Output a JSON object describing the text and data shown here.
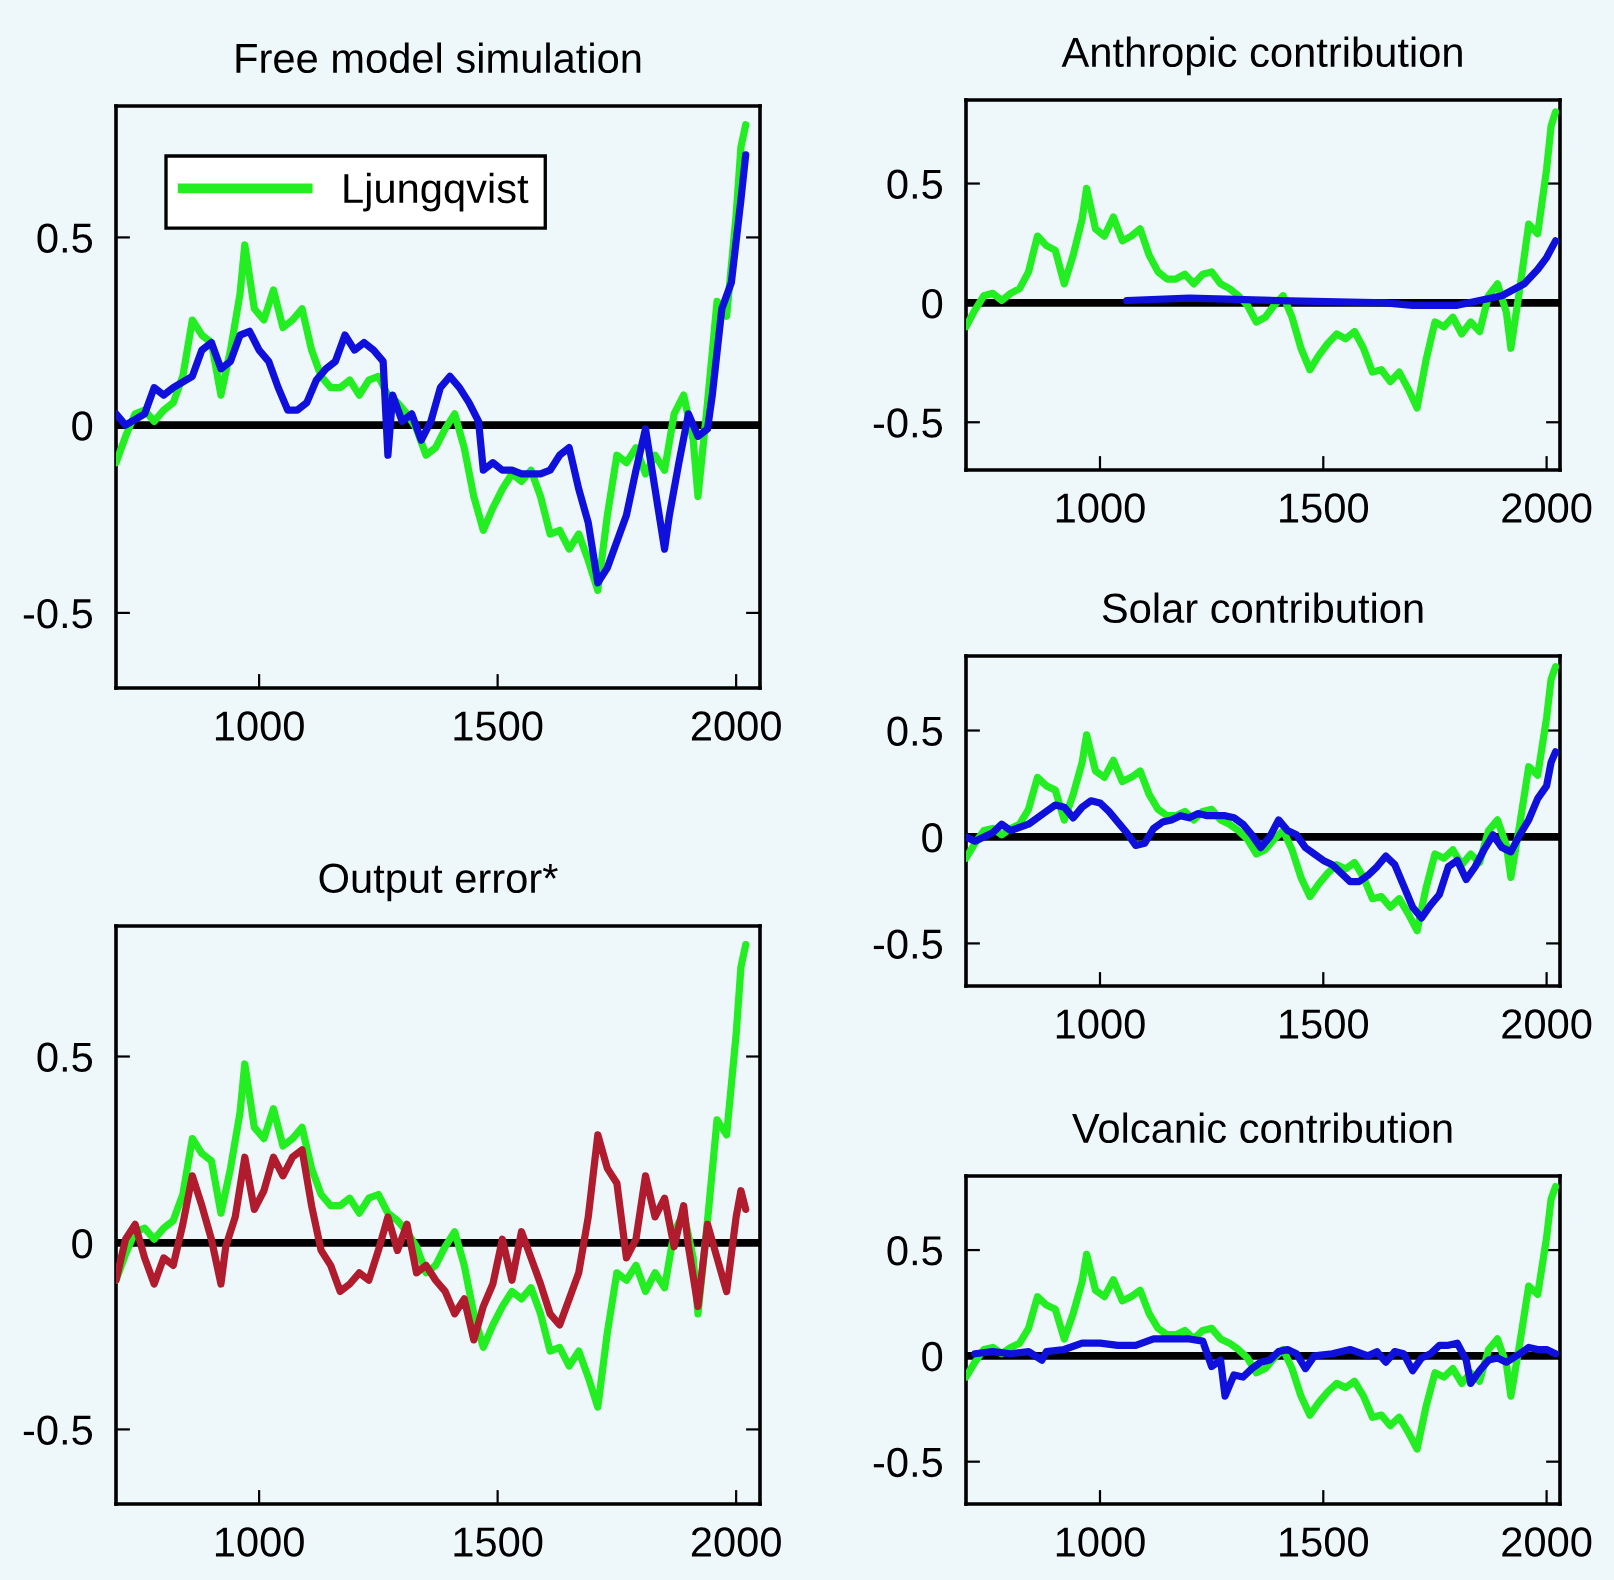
{
  "chart_data": [
    {
      "type": "line",
      "title": "Free model simulation",
      "xlim": [
        700,
        2050
      ],
      "ylim": [
        -0.7,
        0.85
      ],
      "xticks": [
        1000,
        1500,
        2000
      ],
      "yticks": [
        -0.5,
        0,
        0.5
      ],
      "grid": false,
      "legend": "top left",
      "ref_lines": [
        {
          "axis": "y",
          "value": 0,
          "color": "#000000"
        }
      ],
      "series": [
        {
          "name": "Ljungqvist",
          "color": "#22ee22",
          "x": [
            700,
            720,
            740,
            760,
            780,
            800,
            820,
            840,
            860,
            880,
            900,
            920,
            940,
            960,
            970,
            990,
            1010,
            1030,
            1050,
            1070,
            1090,
            1110,
            1130,
            1150,
            1170,
            1190,
            1210,
            1230,
            1250,
            1270,
            1290,
            1310,
            1330,
            1350,
            1370,
            1390,
            1410,
            1430,
            1450,
            1470,
            1490,
            1510,
            1530,
            1550,
            1570,
            1590,
            1610,
            1630,
            1650,
            1670,
            1690,
            1710,
            1730,
            1750,
            1770,
            1790,
            1810,
            1830,
            1850,
            1870,
            1890,
            1910,
            1920,
            1940,
            1960,
            1980,
            2000,
            2010,
            2020
          ],
          "values": [
            -0.1,
            -0.03,
            0.03,
            0.04,
            0.01,
            0.04,
            0.06,
            0.13,
            0.28,
            0.24,
            0.22,
            0.08,
            0.2,
            0.35,
            0.48,
            0.31,
            0.28,
            0.36,
            0.26,
            0.28,
            0.31,
            0.2,
            0.13,
            0.1,
            0.1,
            0.12,
            0.08,
            0.12,
            0.13,
            0.08,
            0.06,
            0.03,
            -0.01,
            -0.08,
            -0.06,
            -0.01,
            0.03,
            -0.06,
            -0.19,
            -0.28,
            -0.22,
            -0.17,
            -0.13,
            -0.15,
            -0.12,
            -0.19,
            -0.29,
            -0.28,
            -0.33,
            -0.29,
            -0.36,
            -0.44,
            -0.24,
            -0.08,
            -0.1,
            -0.06,
            -0.13,
            -0.08,
            -0.12,
            0.03,
            0.08,
            -0.04,
            -0.19,
            0.06,
            0.33,
            0.29,
            0.56,
            0.74,
            0.8
          ]
        },
        {
          "color": "#1010dd",
          "x": [
            700,
            720,
            760,
            780,
            800,
            820,
            860,
            880,
            900,
            920,
            940,
            960,
            980,
            1000,
            1020,
            1040,
            1060,
            1080,
            1100,
            1120,
            1140,
            1160,
            1180,
            1200,
            1220,
            1240,
            1260,
            1270,
            1280,
            1300,
            1320,
            1340,
            1360,
            1380,
            1400,
            1420,
            1440,
            1460,
            1470,
            1490,
            1510,
            1530,
            1550,
            1570,
            1590,
            1610,
            1630,
            1650,
            1670,
            1690,
            1710,
            1730,
            1750,
            1770,
            1790,
            1810,
            1830,
            1850,
            1860,
            1880,
            1900,
            1920,
            1940,
            1950,
            1970,
            1990,
            2010,
            2020
          ],
          "values": [
            0.03,
            0,
            0.03,
            0.1,
            0.08,
            0.1,
            0.13,
            0.2,
            0.22,
            0.15,
            0.17,
            0.24,
            0.25,
            0.2,
            0.17,
            0.1,
            0.04,
            0.04,
            0.06,
            0.12,
            0.15,
            0.17,
            0.24,
            0.2,
            0.22,
            0.2,
            0.17,
            -0.08,
            0.08,
            0.01,
            0.03,
            -0.04,
            0.01,
            0.1,
            0.13,
            0.1,
            0.06,
            0.01,
            -0.12,
            -0.1,
            -0.12,
            -0.12,
            -0.13,
            -0.13,
            -0.13,
            -0.12,
            -0.08,
            -0.06,
            -0.17,
            -0.26,
            -0.42,
            -0.38,
            -0.31,
            -0.24,
            -0.12,
            -0.01,
            -0.17,
            -0.33,
            -0.24,
            -0.1,
            0.03,
            -0.03,
            -0.01,
            0.08,
            0.31,
            0.38,
            0.6,
            0.72
          ]
        }
      ]
    },
    {
      "type": "line",
      "title": "Output error*",
      "xlim": [
        700,
        2050
      ],
      "ylim": [
        -0.7,
        0.85
      ],
      "xticks": [
        1000,
        1500,
        2000
      ],
      "yticks": [
        -0.5,
        0,
        0.5
      ],
      "grid": false,
      "ref_lines": [
        {
          "axis": "y",
          "value": 0,
          "color": "#000000"
        }
      ],
      "series": [
        {
          "color": "#22ee22",
          "x": [
            700,
            720,
            740,
            760,
            780,
            800,
            820,
            840,
            860,
            880,
            900,
            920,
            940,
            960,
            970,
            990,
            1010,
            1030,
            1050,
            1070,
            1090,
            1110,
            1130,
            1150,
            1170,
            1190,
            1210,
            1230,
            1250,
            1270,
            1290,
            1310,
            1330,
            1350,
            1370,
            1390,
            1410,
            1430,
            1450,
            1470,
            1490,
            1510,
            1530,
            1550,
            1570,
            1590,
            1610,
            1630,
            1650,
            1670,
            1690,
            1710,
            1730,
            1750,
            1770,
            1790,
            1810,
            1830,
            1850,
            1870,
            1890,
            1910,
            1920,
            1940,
            1960,
            1980,
            2000,
            2010,
            2020
          ],
          "values": [
            -0.1,
            -0.03,
            0.03,
            0.04,
            0.01,
            0.04,
            0.06,
            0.13,
            0.28,
            0.24,
            0.22,
            0.08,
            0.2,
            0.35,
            0.48,
            0.31,
            0.28,
            0.36,
            0.26,
            0.28,
            0.31,
            0.2,
            0.13,
            0.1,
            0.1,
            0.12,
            0.08,
            0.12,
            0.13,
            0.08,
            0.06,
            0.03,
            -0.01,
            -0.08,
            -0.06,
            -0.01,
            0.03,
            -0.06,
            -0.19,
            -0.28,
            -0.22,
            -0.17,
            -0.13,
            -0.15,
            -0.12,
            -0.19,
            -0.29,
            -0.28,
            -0.33,
            -0.29,
            -0.36,
            -0.44,
            -0.24,
            -0.08,
            -0.1,
            -0.06,
            -0.13,
            -0.08,
            -0.12,
            0.03,
            0.08,
            -0.04,
            -0.19,
            0.06,
            0.33,
            0.29,
            0.56,
            0.74,
            0.8
          ]
        },
        {
          "color": "#b01c2e",
          "x": [
            700,
            720,
            740,
            760,
            780,
            800,
            820,
            840,
            860,
            880,
            900,
            920,
            930,
            950,
            970,
            990,
            1010,
            1030,
            1050,
            1070,
            1090,
            1110,
            1130,
            1150,
            1170,
            1190,
            1210,
            1230,
            1250,
            1270,
            1290,
            1310,
            1330,
            1350,
            1370,
            1390,
            1410,
            1430,
            1450,
            1470,
            1490,
            1510,
            1530,
            1550,
            1570,
            1590,
            1610,
            1630,
            1650,
            1670,
            1690,
            1710,
            1730,
            1750,
            1770,
            1790,
            1810,
            1830,
            1850,
            1870,
            1890,
            1900,
            1920,
            1940,
            1960,
            1980,
            2000,
            2010,
            2020
          ],
          "values": [
            -0.1,
            0.01,
            0.05,
            -0.04,
            -0.11,
            -0.04,
            -0.06,
            0.05,
            0.18,
            0.1,
            0.01,
            -0.11,
            -0.01,
            0.07,
            0.23,
            0.09,
            0.14,
            0.23,
            0.18,
            0.23,
            0.25,
            0.1,
            -0.02,
            -0.06,
            -0.13,
            -0.11,
            -0.08,
            -0.1,
            -0.02,
            0.07,
            -0.02,
            0.05,
            -0.08,
            -0.06,
            -0.1,
            -0.13,
            -0.19,
            -0.15,
            -0.26,
            -0.17,
            -0.11,
            0.01,
            -0.1,
            0.03,
            -0.04,
            -0.11,
            -0.19,
            -0.22,
            -0.15,
            -0.08,
            0.07,
            0.29,
            0.2,
            0.16,
            -0.04,
            0.01,
            0.18,
            0.07,
            0.12,
            -0.01,
            0.1,
            -0.01,
            -0.17,
            0.05,
            -0.04,
            -0.13,
            0.07,
            0.14,
            0.09
          ]
        }
      ]
    },
    {
      "type": "line",
      "title": "Anthropic contribution",
      "xlim": [
        700,
        2030
      ],
      "ylim": [
        -0.7,
        0.85
      ],
      "xticks": [
        1000,
        1500,
        2000
      ],
      "yticks": [
        -0.5,
        0,
        0.5
      ],
      "grid": false,
      "ref_lines": [
        {
          "axis": "y",
          "value": 0,
          "color": "#000000"
        }
      ],
      "series": [
        {
          "color": "#22ee22",
          "x": [
            700,
            720,
            740,
            760,
            780,
            800,
            820,
            840,
            860,
            880,
            900,
            920,
            940,
            960,
            970,
            990,
            1010,
            1030,
            1050,
            1070,
            1090,
            1110,
            1130,
            1150,
            1170,
            1190,
            1210,
            1230,
            1250,
            1270,
            1290,
            1310,
            1330,
            1350,
            1370,
            1390,
            1410,
            1430,
            1450,
            1470,
            1490,
            1510,
            1530,
            1550,
            1570,
            1590,
            1610,
            1630,
            1650,
            1670,
            1690,
            1710,
            1730,
            1750,
            1770,
            1790,
            1810,
            1830,
            1850,
            1870,
            1890,
            1910,
            1920,
            1940,
            1960,
            1980,
            2000,
            2010,
            2020
          ],
          "values": [
            -0.1,
            -0.03,
            0.03,
            0.04,
            0.01,
            0.04,
            0.06,
            0.13,
            0.28,
            0.24,
            0.22,
            0.08,
            0.2,
            0.35,
            0.48,
            0.31,
            0.28,
            0.36,
            0.26,
            0.28,
            0.31,
            0.2,
            0.13,
            0.1,
            0.1,
            0.12,
            0.08,
            0.12,
            0.13,
            0.08,
            0.06,
            0.03,
            -0.01,
            -0.08,
            -0.06,
            -0.01,
            0.03,
            -0.06,
            -0.19,
            -0.28,
            -0.22,
            -0.17,
            -0.13,
            -0.15,
            -0.12,
            -0.19,
            -0.29,
            -0.28,
            -0.33,
            -0.29,
            -0.36,
            -0.44,
            -0.24,
            -0.08,
            -0.1,
            -0.06,
            -0.13,
            -0.08,
            -0.12,
            0.03,
            0.08,
            -0.04,
            -0.19,
            0.06,
            0.33,
            0.29,
            0.56,
            0.74,
            0.8
          ]
        },
        {
          "color": "#1010dd",
          "x": [
            1060,
            1200,
            1400,
            1640,
            1700,
            1800,
            1850,
            1900,
            1950,
            1980,
            2000,
            2020
          ],
          "values": [
            0.01,
            0.02,
            0.01,
            0,
            -0.01,
            -0.01,
            0.01,
            0.03,
            0.08,
            0.14,
            0.19,
            0.26
          ]
        }
      ]
    },
    {
      "type": "line",
      "title": "Solar contribution",
      "xlim": [
        700,
        2030
      ],
      "ylim": [
        -0.7,
        0.85
      ],
      "xticks": [
        1000,
        1500,
        2000
      ],
      "yticks": [
        -0.5,
        0,
        0.5
      ],
      "grid": false,
      "ref_lines": [
        {
          "axis": "y",
          "value": 0,
          "color": "#000000"
        }
      ],
      "series": [
        {
          "color": "#22ee22",
          "x": [
            700,
            720,
            740,
            760,
            780,
            800,
            820,
            840,
            860,
            880,
            900,
            920,
            940,
            960,
            970,
            990,
            1010,
            1030,
            1050,
            1070,
            1090,
            1110,
            1130,
            1150,
            1170,
            1190,
            1210,
            1230,
            1250,
            1270,
            1290,
            1310,
            1330,
            1350,
            1370,
            1390,
            1410,
            1430,
            1450,
            1470,
            1490,
            1510,
            1530,
            1550,
            1570,
            1590,
            1610,
            1630,
            1650,
            1670,
            1690,
            1710,
            1730,
            1750,
            1770,
            1790,
            1810,
            1830,
            1850,
            1870,
            1890,
            1910,
            1920,
            1940,
            1960,
            1980,
            2000,
            2010,
            2020
          ],
          "values": [
            -0.1,
            -0.03,
            0.03,
            0.04,
            0.01,
            0.04,
            0.06,
            0.13,
            0.28,
            0.24,
            0.22,
            0.08,
            0.2,
            0.35,
            0.48,
            0.31,
            0.28,
            0.36,
            0.26,
            0.28,
            0.31,
            0.2,
            0.13,
            0.1,
            0.1,
            0.12,
            0.08,
            0.12,
            0.13,
            0.08,
            0.06,
            0.03,
            -0.01,
            -0.08,
            -0.06,
            -0.01,
            0.03,
            -0.06,
            -0.19,
            -0.28,
            -0.22,
            -0.17,
            -0.13,
            -0.15,
            -0.12,
            -0.19,
            -0.29,
            -0.28,
            -0.33,
            -0.29,
            -0.36,
            -0.44,
            -0.24,
            -0.08,
            -0.1,
            -0.06,
            -0.13,
            -0.08,
            -0.12,
            0.03,
            0.08,
            -0.04,
            -0.19,
            0.06,
            0.33,
            0.29,
            0.56,
            0.74,
            0.8
          ]
        },
        {
          "color": "#1010dd",
          "x": [
            700,
            720,
            760,
            780,
            800,
            840,
            880,
            900,
            920,
            940,
            960,
            980,
            1000,
            1020,
            1040,
            1060,
            1080,
            1100,
            1120,
            1140,
            1160,
            1180,
            1200,
            1220,
            1240,
            1260,
            1280,
            1300,
            1320,
            1340,
            1360,
            1380,
            1400,
            1420,
            1440,
            1460,
            1480,
            1500,
            1520,
            1540,
            1560,
            1580,
            1600,
            1620,
            1640,
            1660,
            1680,
            1700,
            1720,
            1740,
            1760,
            1780,
            1800,
            1820,
            1840,
            1860,
            1880,
            1900,
            1920,
            1940,
            1960,
            1980,
            2000,
            2010,
            2020
          ],
          "values": [
            0,
            -0.02,
            0.02,
            0.06,
            0.03,
            0.06,
            0.12,
            0.15,
            0.14,
            0.09,
            0.14,
            0.17,
            0.16,
            0.12,
            0.07,
            0.02,
            -0.04,
            -0.03,
            0.04,
            0.07,
            0.08,
            0.1,
            0.09,
            0.11,
            0.1,
            0.1,
            0.1,
            0.09,
            0.06,
            0.01,
            -0.05,
            0,
            0.08,
            0.03,
            0.01,
            -0.05,
            -0.08,
            -0.11,
            -0.13,
            -0.17,
            -0.21,
            -0.21,
            -0.18,
            -0.14,
            -0.09,
            -0.13,
            -0.23,
            -0.33,
            -0.38,
            -0.32,
            -0.27,
            -0.14,
            -0.11,
            -0.2,
            -0.14,
            -0.06,
            0.01,
            -0.05,
            -0.07,
            0.01,
            0.08,
            0.18,
            0.24,
            0.35,
            0.4
          ]
        }
      ]
    },
    {
      "type": "line",
      "title": "Volcanic contribution",
      "xlim": [
        700,
        2030
      ],
      "ylim": [
        -0.7,
        0.85
      ],
      "xticks": [
        1000,
        1500,
        2000
      ],
      "yticks": [
        -0.5,
        0,
        0.5
      ],
      "grid": false,
      "ref_lines": [
        {
          "axis": "y",
          "value": 0,
          "color": "#000000"
        }
      ],
      "series": [
        {
          "color": "#22ee22",
          "x": [
            700,
            720,
            740,
            760,
            780,
            800,
            820,
            840,
            860,
            880,
            900,
            920,
            940,
            960,
            970,
            990,
            1010,
            1030,
            1050,
            1070,
            1090,
            1110,
            1130,
            1150,
            1170,
            1190,
            1210,
            1230,
            1250,
            1270,
            1290,
            1310,
            1330,
            1350,
            1370,
            1390,
            1410,
            1430,
            1450,
            1470,
            1490,
            1510,
            1530,
            1550,
            1570,
            1590,
            1610,
            1630,
            1650,
            1670,
            1690,
            1710,
            1730,
            1750,
            1770,
            1790,
            1810,
            1830,
            1850,
            1870,
            1890,
            1910,
            1920,
            1940,
            1960,
            1980,
            2000,
            2010,
            2020
          ],
          "values": [
            -0.1,
            -0.03,
            0.03,
            0.04,
            0.01,
            0.04,
            0.06,
            0.13,
            0.28,
            0.24,
            0.22,
            0.08,
            0.2,
            0.35,
            0.48,
            0.31,
            0.28,
            0.36,
            0.26,
            0.28,
            0.31,
            0.2,
            0.13,
            0.1,
            0.1,
            0.12,
            0.08,
            0.12,
            0.13,
            0.08,
            0.06,
            0.03,
            -0.01,
            -0.08,
            -0.06,
            -0.01,
            0.03,
            -0.06,
            -0.19,
            -0.28,
            -0.22,
            -0.17,
            -0.13,
            -0.15,
            -0.12,
            -0.19,
            -0.29,
            -0.28,
            -0.33,
            -0.29,
            -0.36,
            -0.44,
            -0.24,
            -0.08,
            -0.1,
            -0.06,
            -0.13,
            -0.08,
            -0.12,
            0.03,
            0.08,
            -0.04,
            -0.19,
            0.06,
            0.33,
            0.29,
            0.56,
            0.74,
            0.8
          ]
        },
        {
          "color": "#1010dd",
          "x": [
            720,
            760,
            800,
            840,
            870,
            880,
            920,
            960,
            1000,
            1040,
            1080,
            1120,
            1160,
            1200,
            1230,
            1250,
            1270,
            1280,
            1300,
            1320,
            1340,
            1360,
            1380,
            1400,
            1420,
            1440,
            1460,
            1480,
            1520,
            1560,
            1600,
            1620,
            1640,
            1660,
            1680,
            1700,
            1720,
            1740,
            1760,
            1780,
            1800,
            1820,
            1830,
            1850,
            1870,
            1890,
            1910,
            1940,
            1960,
            1980,
            2000,
            2020
          ],
          "values": [
            0.01,
            0.02,
            0.01,
            0.02,
            -0.02,
            0.02,
            0.03,
            0.06,
            0.06,
            0.05,
            0.05,
            0.08,
            0.08,
            0.08,
            0.07,
            -0.05,
            -0.02,
            -0.19,
            -0.09,
            -0.1,
            -0.06,
            -0.03,
            -0.02,
            0.02,
            0.03,
            0.01,
            -0.06,
            0,
            0.01,
            0.03,
            0,
            0.02,
            -0.03,
            0.02,
            0.01,
            -0.07,
            -0.01,
            0.01,
            0.05,
            0.05,
            0.06,
            -0.02,
            -0.13,
            -0.07,
            -0.02,
            -0.01,
            -0.03,
            0.01,
            0.04,
            0.03,
            0.03,
            0.01
          ]
        }
      ]
    }
  ]
}
